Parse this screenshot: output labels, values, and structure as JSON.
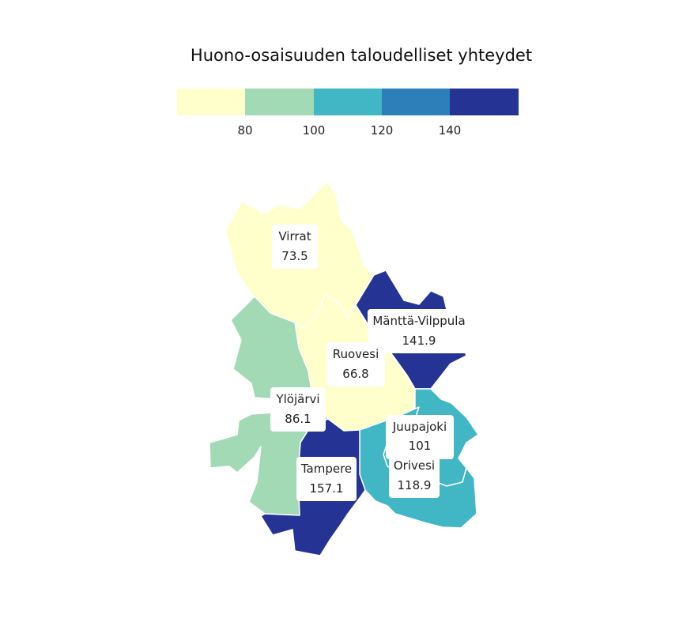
{
  "title": "Huono-osaisuuden taloudelliset yhteydet",
  "legend": {
    "colors": [
      "#ffffcc",
      "#a1dab4",
      "#41b6c4",
      "#2c7fb8",
      "#253494"
    ],
    "ticks": [
      "80",
      "100",
      "120",
      "140"
    ]
  },
  "regions": [
    {
      "name": "Virrat",
      "value": "73.5",
      "color": "#ffffcc"
    },
    {
      "name": "Mänttä-Vilppula",
      "value": "141.9",
      "color": "#253494"
    },
    {
      "name": "Ruovesi",
      "value": "66.8",
      "color": "#ffffcc"
    },
    {
      "name": "Ylöjärvi",
      "value": "86.1",
      "color": "#a1dab4"
    },
    {
      "name": "Juupajoki",
      "value": "101",
      "color": "#41b6c4"
    },
    {
      "name": "Tampere",
      "value": "157.1",
      "color": "#253494"
    },
    {
      "name": "Orivesi",
      "value": "118.9",
      "color": "#41b6c4"
    }
  ]
}
